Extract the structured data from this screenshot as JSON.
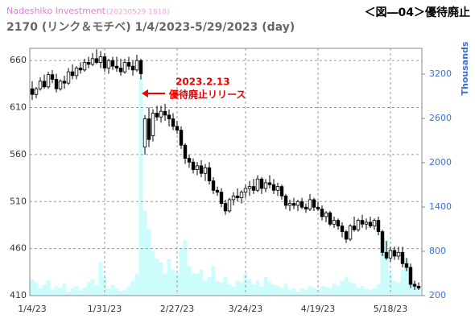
{
  "chart_data": {
    "type": "candlestick",
    "source": "Nadeshiko Investment",
    "timestamp": "(20230529 1818)",
    "title": "2170 (リンク＆モチベ) 1/4/2023-5/29/2023 (day)",
    "figure_label": "＜図―04＞優待廃止",
    "annotation": [
      "2023.2.13",
      "優待廃止リリース"
    ],
    "y2_label": "Thousands",
    "categories": [
      "1/4/23",
      null,
      null,
      null,
      null,
      null,
      null,
      null,
      null,
      null,
      null,
      null,
      null,
      null,
      null,
      null,
      null,
      null,
      "1/31/23",
      null,
      null,
      null,
      null,
      null,
      null,
      null,
      null,
      null,
      null,
      null,
      null,
      null,
      null,
      null,
      null,
      null,
      "2/27/23",
      null,
      null,
      null,
      null,
      null,
      null,
      null,
      null,
      null,
      null,
      null,
      null,
      null,
      null,
      null,
      null,
      "3/24/23",
      null,
      null,
      null,
      null,
      null,
      null,
      null,
      null,
      null,
      null,
      null,
      null,
      null,
      null,
      null,
      null,
      null,
      "4/19/23",
      null,
      null,
      null,
      null,
      null,
      null,
      null,
      null,
      null,
      null,
      null,
      null,
      null,
      null,
      null,
      null,
      null,
      "5/18/23",
      null,
      null,
      null,
      null,
      null,
      null,
      null
    ],
    "open": [
      630,
      624,
      630,
      638,
      632,
      645,
      640,
      630,
      638,
      636,
      648,
      644,
      652,
      650,
      658,
      656,
      662,
      658,
      664,
      652,
      660,
      654,
      652,
      648,
      658,
      654,
      650,
      660,
      568,
      598,
      580,
      604,
      600,
      606,
      602,
      598,
      590,
      586,
      570,
      556,
      552,
      544,
      548,
      540,
      546,
      532,
      522,
      520,
      508,
      500,
      512,
      516,
      514,
      520,
      524,
      526,
      522,
      534,
      524,
      530,
      528,
      522,
      526,
      516,
      506,
      508,
      506,
      510,
      504,
      502,
      512,
      504,
      502,
      494,
      498,
      486,
      490,
      484,
      478,
      470,
      484,
      480,
      490,
      486,
      488,
      484,
      490,
      478,
      456,
      450,
      458,
      452,
      456,
      444,
      440,
      422,
      420
    ],
    "high": [
      638,
      632,
      642,
      645,
      648,
      650,
      646,
      640,
      644,
      652,
      656,
      654,
      658,
      662,
      664,
      668,
      672,
      670,
      668,
      662,
      664,
      664,
      662,
      662,
      664,
      660,
      666,
      662,
      602,
      610,
      608,
      612,
      612,
      614,
      608,
      604,
      596,
      590,
      572,
      560,
      556,
      552,
      554,
      550,
      552,
      536,
      526,
      524,
      512,
      514,
      520,
      524,
      522,
      528,
      532,
      534,
      538,
      536,
      534,
      538,
      534,
      530,
      528,
      518,
      512,
      514,
      512,
      514,
      508,
      518,
      514,
      510,
      506,
      500,
      500,
      494,
      492,
      488,
      480,
      486,
      494,
      492,
      496,
      492,
      494,
      492,
      494,
      480,
      468,
      462,
      462,
      462,
      462,
      450,
      444,
      426,
      424
    ],
    "low": [
      618,
      620,
      628,
      630,
      630,
      636,
      626,
      628,
      630,
      634,
      640,
      640,
      646,
      648,
      652,
      654,
      656,
      652,
      648,
      646,
      650,
      648,
      644,
      646,
      650,
      644,
      648,
      640,
      560,
      568,
      574,
      596,
      594,
      596,
      590,
      586,
      582,
      566,
      550,
      546,
      540,
      538,
      536,
      532,
      528,
      518,
      516,
      504,
      496,
      498,
      506,
      510,
      508,
      514,
      516,
      518,
      520,
      518,
      520,
      524,
      518,
      516,
      512,
      502,
      500,
      502,
      500,
      502,
      498,
      500,
      500,
      500,
      490,
      488,
      484,
      482,
      480,
      472,
      466,
      468,
      478,
      478,
      482,
      480,
      482,
      480,
      474,
      452,
      448,
      446,
      448,
      448,
      440,
      436,
      418,
      416,
      416
    ],
    "close": [
      624,
      630,
      638,
      632,
      645,
      640,
      630,
      638,
      636,
      648,
      644,
      652,
      650,
      658,
      656,
      662,
      658,
      664,
      652,
      660,
      654,
      652,
      648,
      658,
      654,
      650,
      660,
      646,
      598,
      576,
      604,
      600,
      606,
      602,
      598,
      590,
      586,
      570,
      556,
      552,
      544,
      548,
      540,
      546,
      532,
      522,
      520,
      508,
      500,
      512,
      516,
      514,
      520,
      524,
      526,
      522,
      534,
      524,
      530,
      528,
      522,
      526,
      516,
      506,
      508,
      506,
      510,
      504,
      502,
      512,
      504,
      502,
      494,
      498,
      486,
      490,
      484,
      478,
      470,
      484,
      480,
      490,
      486,
      488,
      484,
      490,
      478,
      456,
      450,
      458,
      452,
      456,
      444,
      440,
      422,
      420,
      418
    ],
    "volume": {
      "axis": "y2",
      "color": "#ccfcfc",
      "values": [
        420,
        380,
        300,
        350,
        410,
        280,
        330,
        300,
        360,
        250,
        300,
        330,
        270,
        310,
        380,
        420,
        340,
        650,
        450,
        300,
        350,
        300,
        260,
        280,
        330,
        400,
        500,
        3150,
        1350,
        1100,
        800,
        700,
        650,
        500,
        700,
        550,
        500,
        850,
        950,
        600,
        500,
        500,
        550,
        400,
        450,
        600,
        400,
        380,
        450,
        350,
        320,
        400,
        380,
        500,
        420,
        350,
        400,
        320,
        450,
        380,
        350,
        330,
        300,
        360,
        280,
        300,
        250,
        300,
        280,
        330,
        300,
        280,
        330,
        320,
        300,
        360,
        330,
        400,
        450,
        380,
        360,
        300,
        330,
        290,
        280,
        300,
        350,
        1050,
        950,
        500,
        400,
        380,
        550,
        700,
        450,
        380,
        300
      ]
    },
    "up_color": "#ffffff",
    "down_color": "#000000",
    "ylim": [
      410,
      673
    ],
    "yticks": [
      410,
      460,
      510,
      560,
      610,
      660
    ],
    "y2lim": [
      200,
      3550
    ],
    "y2ticks": [
      200,
      800,
      1400,
      2000,
      2600,
      3200
    ],
    "grid": true
  }
}
